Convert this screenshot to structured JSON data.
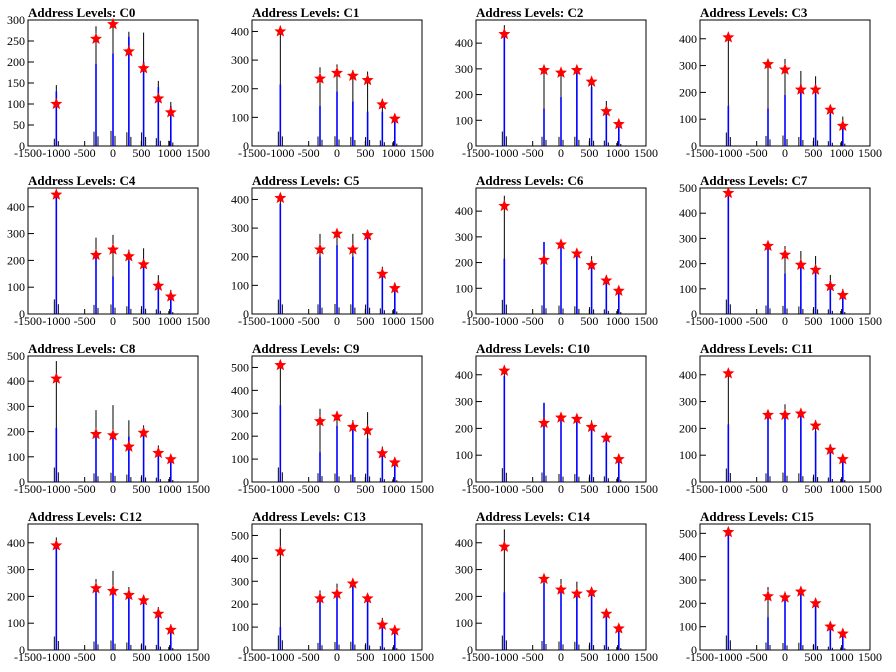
{
  "figure": {
    "bg": "#ffffff",
    "axis_color": "#000000",
    "hist_color": "#000000",
    "fit_color": "#0000ff",
    "marker_color": "#ff0000"
  },
  "chart_data": [
    {
      "type": "bar",
      "title": "Address Levels: C0",
      "xlim": [
        -1500,
        1500
      ],
      "ylim": [
        0,
        300
      ],
      "xticks": [
        -1500,
        -1000,
        -500,
        0,
        500,
        1000,
        1500
      ],
      "yticks": [
        0,
        50,
        100,
        150,
        200,
        250,
        300
      ],
      "peaks": [
        {
          "x": -1000,
          "h": 145,
          "fit": 130,
          "star": 100
        },
        {
          "x": -300,
          "h": 285,
          "fit": 195,
          "star": 255
        },
        {
          "x": 0,
          "h": 300,
          "fit": 220,
          "star": 290
        },
        {
          "x": 280,
          "h": 272,
          "fit": 260,
          "star": 225
        },
        {
          "x": 540,
          "h": 270,
          "fit": 200,
          "star": 185
        },
        {
          "x": 800,
          "h": 155,
          "fit": 140,
          "star": 113
        },
        {
          "x": 1020,
          "h": 105,
          "fit": 95,
          "star": 80
        }
      ]
    },
    {
      "type": "bar",
      "title": "Address Levels: C1",
      "xlim": [
        -1500,
        1500
      ],
      "ylim": [
        0,
        440
      ],
      "xticks": [
        -1500,
        -1000,
        -500,
        0,
        500,
        1000,
        1500
      ],
      "yticks": [
        0,
        100,
        200,
        300,
        400
      ],
      "peaks": [
        {
          "x": -1000,
          "h": 420,
          "fit": 215,
          "star": 400
        },
        {
          "x": -300,
          "h": 275,
          "fit": 140,
          "star": 235
        },
        {
          "x": 0,
          "h": 285,
          "fit": 190,
          "star": 255
        },
        {
          "x": 280,
          "h": 265,
          "fit": 155,
          "star": 245
        },
        {
          "x": 540,
          "h": 260,
          "fit": 120,
          "star": 230
        },
        {
          "x": 800,
          "h": 165,
          "fit": 120,
          "star": 145
        },
        {
          "x": 1020,
          "h": 105,
          "fit": 85,
          "star": 95
        }
      ]
    },
    {
      "type": "bar",
      "title": "Address Levels: C2",
      "xlim": [
        -1500,
        1500
      ],
      "ylim": [
        0,
        490
      ],
      "xticks": [
        -1500,
        -1000,
        -500,
        0,
        500,
        1000,
        1500
      ],
      "yticks": [
        0,
        100,
        200,
        300,
        400
      ],
      "peaks": [
        {
          "x": -1000,
          "h": 470,
          "fit": 440,
          "star": 435
        },
        {
          "x": -300,
          "h": 300,
          "fit": 145,
          "star": 295
        },
        {
          "x": 0,
          "h": 295,
          "fit": 190,
          "star": 285
        },
        {
          "x": 280,
          "h": 300,
          "fit": 290,
          "star": 295
        },
        {
          "x": 540,
          "h": 255,
          "fit": 230,
          "star": 250
        },
        {
          "x": 800,
          "h": 175,
          "fit": 130,
          "star": 135
        },
        {
          "x": 1020,
          "h": 100,
          "fit": 75,
          "star": 85
        }
      ]
    },
    {
      "type": "bar",
      "title": "Address Levels: C3",
      "xlim": [
        -1500,
        1500
      ],
      "ylim": [
        0,
        470
      ],
      "xticks": [
        -1500,
        -1000,
        -500,
        0,
        500,
        1000,
        1500
      ],
      "yticks": [
        0,
        100,
        200,
        300,
        400
      ],
      "peaks": [
        {
          "x": -1000,
          "h": 420,
          "fit": 150,
          "star": 405
        },
        {
          "x": -300,
          "h": 310,
          "fit": 140,
          "star": 305
        },
        {
          "x": 0,
          "h": 325,
          "fit": 190,
          "star": 285
        },
        {
          "x": 280,
          "h": 280,
          "fit": 230,
          "star": 210
        },
        {
          "x": 540,
          "h": 260,
          "fit": 195,
          "star": 210
        },
        {
          "x": 800,
          "h": 150,
          "fit": 120,
          "star": 135
        },
        {
          "x": 1020,
          "h": 110,
          "fit": 80,
          "star": 75
        }
      ]
    },
    {
      "type": "bar",
      "title": "Address Levels: C4",
      "xlim": [
        -1500,
        1500
      ],
      "ylim": [
        0,
        470
      ],
      "xticks": [
        -1500,
        -1000,
        -500,
        0,
        500,
        1000,
        1500
      ],
      "yticks": [
        0,
        100,
        200,
        300,
        400
      ],
      "peaks": [
        {
          "x": -1000,
          "h": 455,
          "fit": 445,
          "star": 445
        },
        {
          "x": -300,
          "h": 285,
          "fit": 210,
          "star": 220
        },
        {
          "x": 0,
          "h": 295,
          "fit": 140,
          "star": 240
        },
        {
          "x": 280,
          "h": 240,
          "fit": 200,
          "star": 215
        },
        {
          "x": 540,
          "h": 245,
          "fit": 190,
          "star": 185
        },
        {
          "x": 800,
          "h": 145,
          "fit": 125,
          "star": 105
        },
        {
          "x": 1020,
          "h": 90,
          "fit": 70,
          "star": 65
        }
      ]
    },
    {
      "type": "bar",
      "title": "Address Levels: C5",
      "xlim": [
        -1500,
        1500
      ],
      "ylim": [
        0,
        440
      ],
      "xticks": [
        -1500,
        -1000,
        -500,
        0,
        500,
        1000,
        1500
      ],
      "yticks": [
        0,
        100,
        200,
        300,
        400
      ],
      "peaks": [
        {
          "x": -1000,
          "h": 420,
          "fit": 385,
          "star": 405
        },
        {
          "x": -300,
          "h": 280,
          "fit": 200,
          "star": 225
        },
        {
          "x": 0,
          "h": 290,
          "fit": 240,
          "star": 280
        },
        {
          "x": 280,
          "h": 280,
          "fit": 200,
          "star": 225
        },
        {
          "x": 540,
          "h": 275,
          "fit": 270,
          "star": 275
        },
        {
          "x": 800,
          "h": 165,
          "fit": 130,
          "star": 140
        },
        {
          "x": 1020,
          "h": 110,
          "fit": 85,
          "star": 90
        }
      ]
    },
    {
      "type": "bar",
      "title": "Address Levels: C6",
      "xlim": [
        -1500,
        1500
      ],
      "ylim": [
        0,
        490
      ],
      "xticks": [
        -1500,
        -1000,
        -500,
        0,
        500,
        1000,
        1500
      ],
      "yticks": [
        0,
        100,
        200,
        300,
        400
      ],
      "peaks": [
        {
          "x": -1000,
          "h": 460,
          "fit": 215,
          "star": 420
        },
        {
          "x": -300,
          "h": 280,
          "fit": 280,
          "star": 210
        },
        {
          "x": 0,
          "h": 270,
          "fit": 260,
          "star": 270
        },
        {
          "x": 280,
          "h": 250,
          "fit": 245,
          "star": 235
        },
        {
          "x": 540,
          "h": 225,
          "fit": 185,
          "star": 190
        },
        {
          "x": 800,
          "h": 150,
          "fit": 140,
          "star": 130
        },
        {
          "x": 1020,
          "h": 95,
          "fit": 90,
          "star": 90
        }
      ]
    },
    {
      "type": "bar",
      "title": "Address Levels: C7",
      "xlim": [
        -1500,
        1500
      ],
      "ylim": [
        0,
        500
      ],
      "xticks": [
        -1500,
        -1000,
        -500,
        0,
        500,
        1000,
        1500
      ],
      "yticks": [
        0,
        100,
        200,
        300,
        400,
        500
      ],
      "peaks": [
        {
          "x": -1000,
          "h": 480,
          "fit": 465,
          "star": 480
        },
        {
          "x": -300,
          "h": 280,
          "fit": 270,
          "star": 270
        },
        {
          "x": 0,
          "h": 270,
          "fit": 160,
          "star": 235
        },
        {
          "x": 280,
          "h": 250,
          "fit": 195,
          "star": 195
        },
        {
          "x": 540,
          "h": 230,
          "fit": 180,
          "star": 175
        },
        {
          "x": 800,
          "h": 155,
          "fit": 130,
          "star": 110
        },
        {
          "x": 1020,
          "h": 100,
          "fit": 70,
          "star": 75
        }
      ]
    },
    {
      "type": "bar",
      "title": "Address Levels: C8",
      "xlim": [
        -1500,
        1500
      ],
      "ylim": [
        0,
        500
      ],
      "xticks": [
        -1500,
        -1000,
        -500,
        0,
        500,
        1000,
        1500
      ],
      "yticks": [
        0,
        100,
        200,
        300,
        400,
        500
      ],
      "peaks": [
        {
          "x": -1000,
          "h": 480,
          "fit": 215,
          "star": 410
        },
        {
          "x": -300,
          "h": 285,
          "fit": 200,
          "star": 190
        },
        {
          "x": 0,
          "h": 305,
          "fit": 195,
          "star": 185
        },
        {
          "x": 280,
          "h": 245,
          "fit": 180,
          "star": 140
        },
        {
          "x": 540,
          "h": 225,
          "fit": 205,
          "star": 195
        },
        {
          "x": 800,
          "h": 145,
          "fit": 120,
          "star": 115
        },
        {
          "x": 1020,
          "h": 100,
          "fit": 80,
          "star": 90
        }
      ]
    },
    {
      "type": "bar",
      "title": "Address Levels: C9",
      "xlim": [
        -1500,
        1500
      ],
      "ylim": [
        0,
        550
      ],
      "xticks": [
        -1500,
        -1000,
        -500,
        0,
        500,
        1000,
        1500
      ],
      "yticks": [
        0,
        100,
        200,
        300,
        400,
        500
      ],
      "peaks": [
        {
          "x": -1000,
          "h": 530,
          "fit": 335,
          "star": 510
        },
        {
          "x": -300,
          "h": 320,
          "fit": 130,
          "star": 265
        },
        {
          "x": 0,
          "h": 310,
          "fit": 245,
          "star": 285
        },
        {
          "x": 280,
          "h": 270,
          "fit": 235,
          "star": 240
        },
        {
          "x": 540,
          "h": 305,
          "fit": 190,
          "star": 225
        },
        {
          "x": 800,
          "h": 155,
          "fit": 120,
          "star": 125
        },
        {
          "x": 1020,
          "h": 95,
          "fit": 75,
          "star": 85
        }
      ]
    },
    {
      "type": "bar",
      "title": "Address Levels: C10",
      "xlim": [
        -1500,
        1500
      ],
      "ylim": [
        0,
        470
      ],
      "xticks": [
        -1500,
        -1000,
        -500,
        0,
        500,
        1000,
        1500
      ],
      "yticks": [
        0,
        100,
        200,
        300,
        400
      ],
      "peaks": [
        {
          "x": -1000,
          "h": 430,
          "fit": 395,
          "star": 415
        },
        {
          "x": -300,
          "h": 295,
          "fit": 295,
          "star": 220
        },
        {
          "x": 0,
          "h": 250,
          "fit": 235,
          "star": 240
        },
        {
          "x": 280,
          "h": 245,
          "fit": 235,
          "star": 235
        },
        {
          "x": 540,
          "h": 230,
          "fit": 210,
          "star": 205
        },
        {
          "x": 800,
          "h": 175,
          "fit": 160,
          "star": 165
        },
        {
          "x": 1020,
          "h": 100,
          "fit": 80,
          "star": 85
        }
      ]
    },
    {
      "type": "bar",
      "title": "Address Levels: C11",
      "xlim": [
        -1500,
        1500
      ],
      "ylim": [
        0,
        470
      ],
      "xticks": [
        -1500,
        -1000,
        -500,
        0,
        500,
        1000,
        1500
      ],
      "yticks": [
        0,
        100,
        200,
        300,
        400
      ],
      "peaks": [
        {
          "x": -1000,
          "h": 420,
          "fit": 215,
          "star": 405
        },
        {
          "x": -300,
          "h": 270,
          "fit": 245,
          "star": 250
        },
        {
          "x": 0,
          "h": 290,
          "fit": 245,
          "star": 250
        },
        {
          "x": 280,
          "h": 270,
          "fit": 270,
          "star": 255
        },
        {
          "x": 540,
          "h": 230,
          "fit": 190,
          "star": 210
        },
        {
          "x": 800,
          "h": 140,
          "fit": 140,
          "star": 120
        },
        {
          "x": 1020,
          "h": 95,
          "fit": 85,
          "star": 85
        }
      ]
    },
    {
      "type": "bar",
      "title": "Address Levels: C12",
      "xlim": [
        -1500,
        1500
      ],
      "ylim": [
        0,
        470
      ],
      "xticks": [
        -1500,
        -1000,
        -500,
        0,
        500,
        1000,
        1500
      ],
      "yticks": [
        0,
        100,
        200,
        300,
        400
      ],
      "peaks": [
        {
          "x": -1000,
          "h": 420,
          "fit": 400,
          "star": 390
        },
        {
          "x": -300,
          "h": 265,
          "fit": 225,
          "star": 230
        },
        {
          "x": 0,
          "h": 295,
          "fit": 230,
          "star": 220
        },
        {
          "x": 280,
          "h": 235,
          "fit": 220,
          "star": 205
        },
        {
          "x": 540,
          "h": 205,
          "fit": 200,
          "star": 185
        },
        {
          "x": 800,
          "h": 160,
          "fit": 145,
          "star": 135
        },
        {
          "x": 1020,
          "h": 95,
          "fit": 80,
          "star": 75
        }
      ]
    },
    {
      "type": "bar",
      "title": "Address Levels: C13",
      "xlim": [
        -1500,
        1500
      ],
      "ylim": [
        0,
        550
      ],
      "xticks": [
        -1500,
        -1000,
        -500,
        0,
        500,
        1000,
        1500
      ],
      "yticks": [
        0,
        100,
        200,
        300,
        400,
        500
      ],
      "peaks": [
        {
          "x": -1000,
          "h": 530,
          "fit": 100,
          "star": 430
        },
        {
          "x": -300,
          "h": 260,
          "fit": 245,
          "star": 225
        },
        {
          "x": 0,
          "h": 290,
          "fit": 240,
          "star": 245
        },
        {
          "x": 280,
          "h": 300,
          "fit": 290,
          "star": 290
        },
        {
          "x": 540,
          "h": 245,
          "fit": 220,
          "star": 225
        },
        {
          "x": 800,
          "h": 140,
          "fit": 130,
          "star": 110
        },
        {
          "x": 1020,
          "h": 100,
          "fit": 90,
          "star": 85
        }
      ]
    },
    {
      "type": "bar",
      "title": "Address Levels: C14",
      "xlim": [
        -1500,
        1500
      ],
      "ylim": [
        0,
        470
      ],
      "xticks": [
        -1500,
        -1000,
        -500,
        0,
        500,
        1000,
        1500
      ],
      "yticks": [
        0,
        100,
        200,
        300,
        400
      ],
      "peaks": [
        {
          "x": -1000,
          "h": 450,
          "fit": 215,
          "star": 385
        },
        {
          "x": -300,
          "h": 280,
          "fit": 250,
          "star": 265
        },
        {
          "x": 0,
          "h": 265,
          "fit": 215,
          "star": 225
        },
        {
          "x": 280,
          "h": 255,
          "fit": 215,
          "star": 210
        },
        {
          "x": 540,
          "h": 230,
          "fit": 215,
          "star": 215
        },
        {
          "x": 800,
          "h": 150,
          "fit": 145,
          "star": 135
        },
        {
          "x": 1020,
          "h": 90,
          "fit": 80,
          "star": 80
        }
      ]
    },
    {
      "type": "bar",
      "title": "Address Levels: C15",
      "xlim": [
        -1500,
        1500
      ],
      "ylim": [
        0,
        540
      ],
      "xticks": [
        -1500,
        -1000,
        -500,
        0,
        500,
        1000,
        1500
      ],
      "yticks": [
        0,
        100,
        200,
        300,
        400,
        500
      ],
      "peaks": [
        {
          "x": -1000,
          "h": 520,
          "fit": 515,
          "star": 505
        },
        {
          "x": -300,
          "h": 270,
          "fit": 140,
          "star": 230
        },
        {
          "x": 0,
          "h": 250,
          "fit": 235,
          "star": 225
        },
        {
          "x": 280,
          "h": 260,
          "fit": 255,
          "star": 250
        },
        {
          "x": 540,
          "h": 210,
          "fit": 195,
          "star": 200
        },
        {
          "x": 800,
          "h": 120,
          "fit": 100,
          "star": 100
        },
        {
          "x": 1020,
          "h": 90,
          "fit": 80,
          "star": 70
        }
      ]
    }
  ]
}
